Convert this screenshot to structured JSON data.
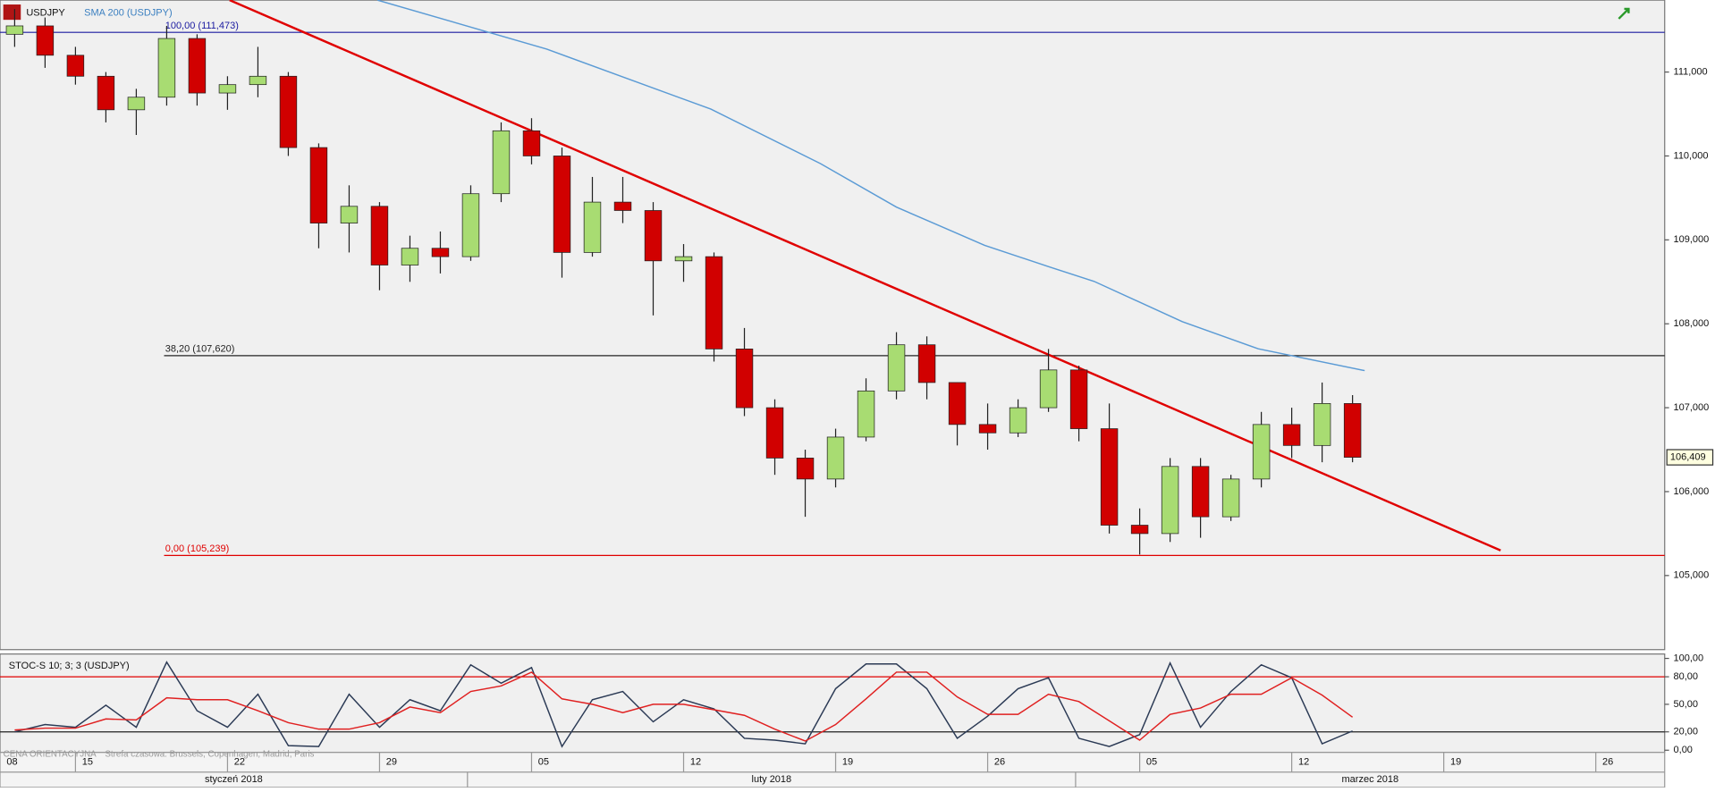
{
  "chart_data": [
    {
      "type": "candlestick",
      "symbol": "USDJPY",
      "x": [
        3,
        4,
        5,
        6,
        7,
        8,
        9,
        10,
        11,
        12,
        13,
        14,
        15,
        16,
        17,
        18,
        19,
        20,
        21,
        22,
        23,
        24,
        25,
        26,
        27,
        28,
        29,
        30,
        31,
        32,
        33,
        34,
        35,
        36,
        37,
        38,
        39,
        40,
        41,
        42,
        43,
        44,
        45,
        46,
        47
      ],
      "open": [
        111.45,
        111.55,
        111.2,
        110.95,
        110.55,
        110.7,
        111.4,
        110.75,
        110.85,
        110.95,
        110.1,
        109.2,
        109.4,
        108.7,
        108.9,
        108.8,
        109.55,
        110.3,
        110.0,
        108.85,
        109.45,
        109.35,
        108.75,
        108.8,
        107.7,
        107.0,
        106.4,
        106.15,
        106.65,
        107.2,
        107.75,
        107.3,
        106.8,
        106.7,
        107.0,
        107.45,
        106.75,
        105.6,
        105.5,
        106.3,
        105.7,
        106.15,
        106.8,
        106.55,
        107.05
      ],
      "high": [
        111.75,
        111.65,
        111.3,
        111.0,
        110.8,
        111.55,
        111.45,
        110.95,
        111.3,
        111.0,
        110.15,
        109.65,
        109.45,
        109.05,
        109.1,
        109.65,
        110.4,
        110.45,
        110.1,
        109.75,
        109.75,
        109.45,
        108.95,
        108.85,
        107.95,
        107.1,
        106.5,
        106.75,
        107.35,
        107.9,
        107.85,
        107.3,
        107.05,
        107.1,
        107.7,
        107.5,
        107.05,
        105.8,
        106.4,
        106.4,
        106.2,
        106.95,
        107.0,
        107.3,
        107.15
      ],
      "low": [
        111.3,
        111.05,
        110.85,
        110.4,
        110.25,
        110.6,
        110.6,
        110.55,
        110.7,
        110.0,
        108.9,
        108.85,
        108.4,
        108.5,
        108.6,
        108.75,
        109.45,
        109.9,
        108.55,
        108.8,
        109.2,
        108.1,
        108.5,
        107.55,
        106.9,
        106.2,
        105.7,
        106.05,
        106.6,
        107.1,
        107.1,
        106.55,
        106.5,
        106.65,
        106.95,
        106.6,
        105.5,
        105.25,
        105.4,
        105.45,
        105.65,
        106.05,
        106.4,
        106.35,
        106.35
      ],
      "close": [
        111.55,
        111.2,
        110.95,
        110.55,
        110.7,
        111.4,
        110.75,
        110.85,
        110.95,
        110.1,
        109.2,
        109.4,
        108.7,
        108.9,
        108.8,
        109.55,
        110.3,
        110.0,
        108.85,
        109.45,
        109.35,
        108.75,
        108.8,
        107.7,
        107.0,
        106.4,
        106.15,
        106.65,
        107.2,
        107.75,
        107.3,
        106.8,
        106.7,
        107.0,
        107.45,
        106.75,
        105.6,
        105.5,
        106.3,
        105.7,
        106.15,
        106.8,
        106.55,
        107.05,
        106.409
      ],
      "up_color": "#a8dc72",
      "down_color": "#d10000",
      "series": [
        {
          "name": "SMA 200 (USDJPY)",
          "color": "#5b9bd5",
          "x": [
            14.93,
            20.5,
            25.9,
            29.5,
            32.0,
            34.9,
            37.05,
            38.5,
            41.4,
            43.9,
            47.4
          ],
          "values": [
            111.857,
            111.273,
            110.558,
            109.909,
            109.39,
            108.935,
            108.675,
            108.506,
            108.026,
            107.701,
            107.442
          ]
        }
      ],
      "trendline": {
        "color": "#e00000",
        "x": [
          10.07,
          51.87
        ],
        "values": [
          111.857,
          105.299
        ]
      },
      "levels": [
        {
          "value": 111.473,
          "label": "100,00 (111,473)",
          "color": "#1a1aa0"
        },
        {
          "value": 107.62,
          "label": "38,20 (107,620)",
          "color": "#222222"
        },
        {
          "value": 105.239,
          "label": "0,00 (105,239)",
          "color": "#e00000"
        }
      ],
      "last_price": {
        "value": 106.409,
        "label": "106,409"
      },
      "xlim": [
        2.518,
        57.266
      ],
      "ylim": [
        104.117,
        111.857
      ],
      "yticks": [
        {
          "value": 105,
          "label": "105,000"
        },
        {
          "value": 106,
          "label": "106,000"
        },
        {
          "value": 107,
          "label": "107,000"
        },
        {
          "value": 108,
          "label": "108,000"
        },
        {
          "value": 109,
          "label": "109,000"
        },
        {
          "value": 110,
          "label": "110,000"
        },
        {
          "value": 111,
          "label": "111,000"
        }
      ]
    },
    {
      "type": "line",
      "title": "STOC-S 10; 3; 3 (USDJPY)",
      "series": [
        {
          "color": "#2b3a55",
          "x": [
            3,
            4,
            5,
            6,
            7,
            8,
            9,
            10,
            11,
            12,
            13,
            14,
            15,
            16,
            17,
            18,
            19,
            20,
            21,
            22,
            23,
            24,
            25,
            26,
            27,
            28,
            29,
            30,
            31,
            32,
            33,
            34,
            35,
            36,
            37,
            38,
            39,
            40,
            41,
            42,
            43,
            44,
            45,
            46,
            47
          ],
          "values": [
            20,
            28,
            25,
            49,
            25,
            96,
            43,
            25,
            61,
            5,
            4,
            61,
            25,
            55,
            43,
            93,
            73,
            90,
            4,
            55,
            64,
            31,
            55,
            45,
            13,
            11,
            7,
            67,
            94,
            94,
            67,
            13,
            37,
            67,
            79,
            13,
            4,
            17,
            95,
            25,
            64,
            93,
            79,
            7,
            21
          ]
        },
        {
          "color": "#e02020",
          "x": [
            3,
            4,
            5,
            6,
            7,
            8,
            9,
            10,
            11,
            12,
            13,
            14,
            15,
            16,
            17,
            18,
            19,
            20,
            21,
            22,
            23,
            24,
            25,
            26,
            27,
            28,
            29,
            30,
            31,
            32,
            33,
            34,
            35,
            36,
            37,
            38,
            39,
            40,
            41,
            42,
            43,
            44,
            45,
            46,
            47
          ],
          "values": [
            22,
            24,
            24,
            34,
            33,
            57,
            55,
            55,
            43,
            30,
            23,
            23,
            30,
            47,
            41,
            64,
            70,
            85,
            56,
            50,
            41,
            50,
            50,
            44,
            38,
            23,
            10,
            28,
            56,
            85,
            85,
            58,
            39,
            39,
            61,
            53,
            32,
            11,
            39,
            46,
            61,
            61,
            79,
            60,
            36
          ]
        }
      ],
      "levels": [
        {
          "value": 80,
          "color": "#e00000"
        },
        {
          "value": 20,
          "color": "#222222"
        }
      ],
      "xlim": [
        2.518,
        57.266
      ],
      "ylim": [
        -2.4,
        104.8
      ],
      "yticks": [
        {
          "value": 0,
          "label": "0,00"
        },
        {
          "value": 20,
          "label": "20,00"
        },
        {
          "value": 50,
          "label": "50,00"
        },
        {
          "value": 80,
          "label": "80,00"
        },
        {
          "value": 100,
          "label": "100,00"
        }
      ],
      "xticks": [
        {
          "value": 0,
          "label": "08"
        },
        {
          "value": 5,
          "label": "15"
        },
        {
          "value": 10,
          "label": "22"
        },
        {
          "value": 15,
          "label": "29"
        },
        {
          "value": 20,
          "label": "05"
        },
        {
          "value": 25,
          "label": "12"
        },
        {
          "value": 30,
          "label": "19"
        },
        {
          "value": 35,
          "label": "26"
        },
        {
          "value": 40,
          "label": "05"
        },
        {
          "value": 45,
          "label": "12"
        },
        {
          "value": 50,
          "label": "19"
        },
        {
          "value": 55,
          "label": "26"
        }
      ],
      "months": [
        "styczeń 2018",
        "luty 2018",
        "marzec 2018"
      ]
    }
  ],
  "footer": {
    "note": "CENA ORIENTACYJNA",
    "timezone": "Strefa czasowa: Brussels, Copenhagen, Madrid, Paris"
  }
}
